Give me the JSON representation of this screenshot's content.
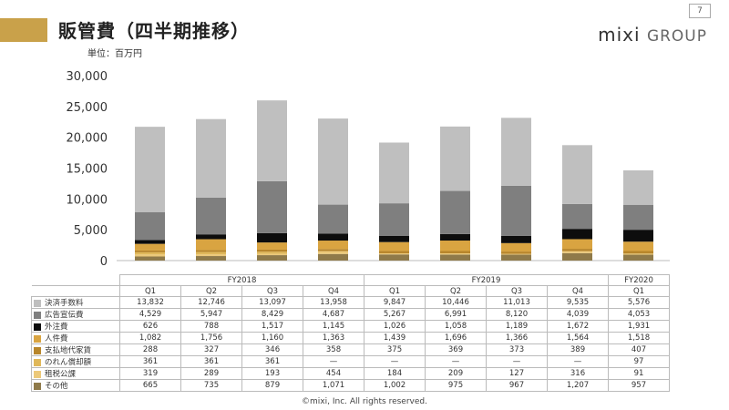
{
  "header": {
    "title": "販管費（四半期推移）",
    "unit": "単位：百万円",
    "logo_main": "mixi",
    "logo_sub": "GROUP",
    "page": "7"
  },
  "footer": {
    "copyright": "©mixi, Inc. All rights reserved."
  },
  "colors": {
    "accent": "#c9a14a",
    "series": [
      "#bfbfbf",
      "#7f7f7f",
      "#0d0d0d",
      "#d9a441",
      "#b8862b",
      "#e0b85a",
      "#ecc97a",
      "#8f7a4a"
    ]
  },
  "chart_data": {
    "type": "bar",
    "stacked": true,
    "ylim": [
      0,
      30000
    ],
    "yticks": [
      "0",
      "5,000",
      "10,000",
      "15,000",
      "20,000",
      "25,000",
      "30,000"
    ],
    "ytick_values": [
      0,
      5000,
      10000,
      15000,
      20000,
      25000,
      30000
    ],
    "years": [
      {
        "label": "FY2018",
        "span": 4
      },
      {
        "label": "FY2019",
        "span": 4
      },
      {
        "label": "FY2020",
        "span": 1
      }
    ],
    "categories": [
      "Q1",
      "Q2",
      "Q3",
      "Q4",
      "Q1",
      "Q2",
      "Q3",
      "Q4",
      "Q1"
    ],
    "series": [
      {
        "name": "決済手数料",
        "values": [
          13832,
          12746,
          13097,
          13958,
          9847,
          10446,
          11013,
          9535,
          5576
        ],
        "labels": [
          "13,832",
          "12,746",
          "13,097",
          "13,958",
          "9,847",
          "10,446",
          "11,013",
          "9,535",
          "5,576"
        ]
      },
      {
        "name": "広告宣伝費",
        "values": [
          4529,
          5947,
          8429,
          4687,
          5267,
          6991,
          8120,
          4039,
          4053
        ],
        "labels": [
          "4,529",
          "5,947",
          "8,429",
          "4,687",
          "5,267",
          "6,991",
          "8,120",
          "4,039",
          "4,053"
        ]
      },
      {
        "name": "外注費",
        "values": [
          626,
          788,
          1517,
          1145,
          1026,
          1058,
          1189,
          1672,
          1931
        ],
        "labels": [
          "626",
          "788",
          "1,517",
          "1,145",
          "1,026",
          "1,058",
          "1,189",
          "1,672",
          "1,931"
        ]
      },
      {
        "name": "人件費",
        "values": [
          1082,
          1756,
          1160,
          1363,
          1439,
          1696,
          1366,
          1564,
          1518
        ],
        "labels": [
          "1,082",
          "1,756",
          "1,160",
          "1,363",
          "1,439",
          "1,696",
          "1,366",
          "1,564",
          "1,518"
        ]
      },
      {
        "name": "支払地代家賃",
        "values": [
          288,
          327,
          346,
          358,
          375,
          369,
          373,
          389,
          407
        ],
        "labels": [
          "288",
          "327",
          "346",
          "358",
          "375",
          "369",
          "373",
          "389",
          "407"
        ]
      },
      {
        "name": "のれん償却額",
        "values": [
          361,
          361,
          361,
          0,
          0,
          0,
          0,
          0,
          97
        ],
        "labels": [
          "361",
          "361",
          "361",
          "—",
          "—",
          "—",
          "—",
          "—",
          "97"
        ]
      },
      {
        "name": "租税公課",
        "values": [
          319,
          289,
          193,
          454,
          184,
          209,
          127,
          316,
          91
        ],
        "labels": [
          "319",
          "289",
          "193",
          "454",
          "184",
          "209",
          "127",
          "316",
          "91"
        ]
      },
      {
        "name": "その他",
        "values": [
          665,
          735,
          879,
          1071,
          1002,
          975,
          967,
          1207,
          957
        ],
        "labels": [
          "665",
          "735",
          "879",
          "1,071",
          "1,002",
          "975",
          "967",
          "1,207",
          "957"
        ]
      }
    ]
  }
}
